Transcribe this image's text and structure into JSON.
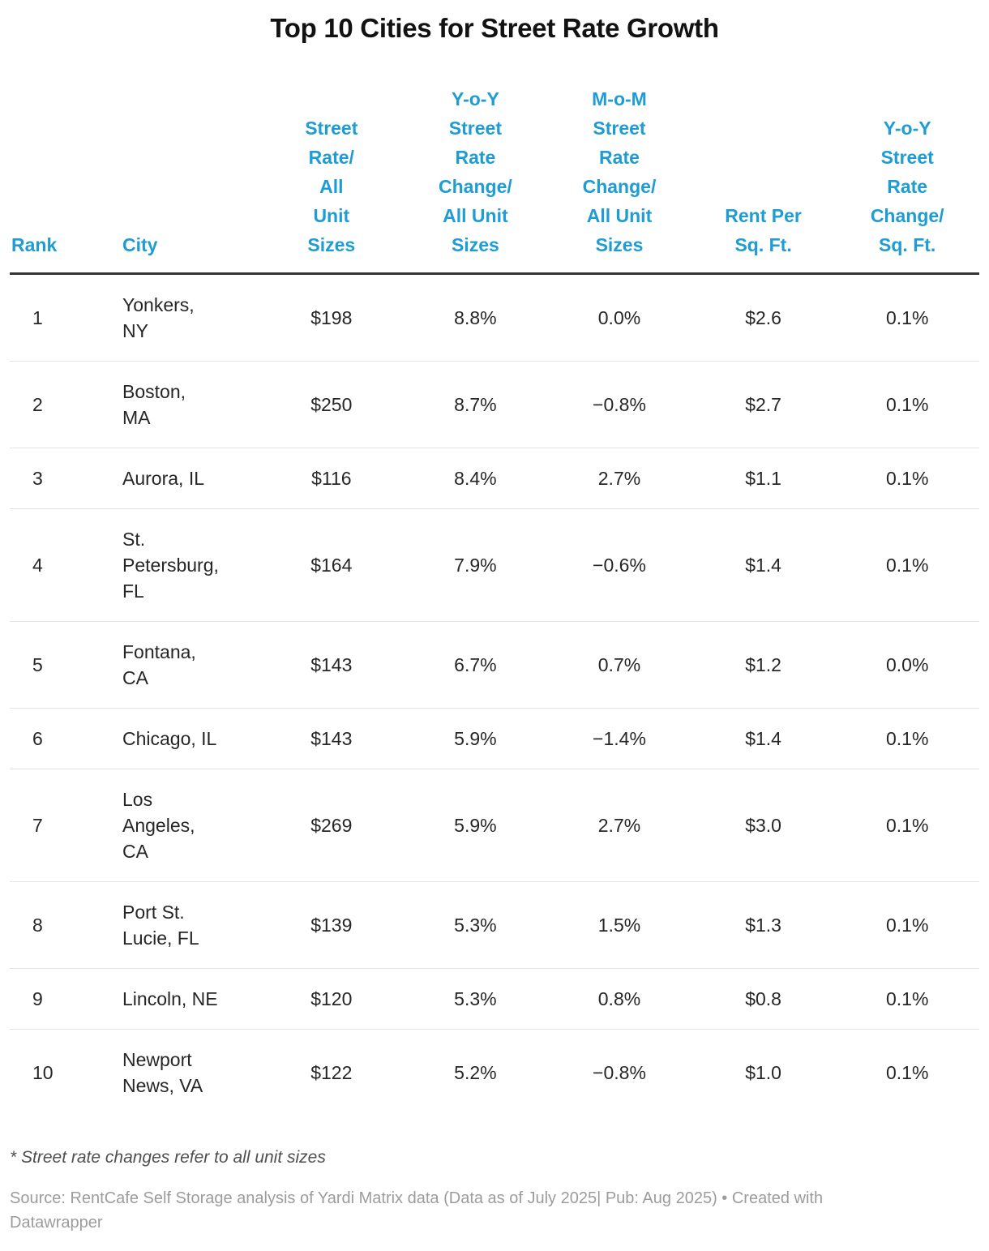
{
  "chart_data": {
    "type": "table",
    "title": "Top 10 Cities for Street Rate Growth",
    "columns": [
      {
        "id": "rank",
        "label": "Rank"
      },
      {
        "id": "city",
        "label": "City"
      },
      {
        "id": "street_rate",
        "label": "Street\nRate/\nAll\nUnit\nSizes"
      },
      {
        "id": "yoy_change",
        "label": "Y-o-Y\nStreet\nRate\nChange/\nAll Unit\nSizes"
      },
      {
        "id": "mom_change",
        "label": "M-o-M\nStreet\nRate\nChange/\nAll Unit\nSizes"
      },
      {
        "id": "rent_sqft",
        "label": "Rent Per\nSq. Ft."
      },
      {
        "id": "yoy_sqft",
        "label": "Y-o-Y\nStreet\nRate\nChange/\nSq. Ft."
      }
    ],
    "rows": [
      {
        "rank": "1",
        "city": "Yonkers,\nNY",
        "street_rate": "$198",
        "yoy_change": "8.8%",
        "mom_change": "0.0%",
        "rent_sqft": "$2.6",
        "yoy_sqft": "0.1%"
      },
      {
        "rank": "2",
        "city": "Boston,\nMA",
        "street_rate": "$250",
        "yoy_change": "8.7%",
        "mom_change": "−0.8%",
        "rent_sqft": "$2.7",
        "yoy_sqft": "0.1%"
      },
      {
        "rank": "3",
        "city": "Aurora, IL",
        "street_rate": "$116",
        "yoy_change": "8.4%",
        "mom_change": "2.7%",
        "rent_sqft": "$1.1",
        "yoy_sqft": "0.1%"
      },
      {
        "rank": "4",
        "city": "St.\nPetersburg,\nFL",
        "street_rate": "$164",
        "yoy_change": "7.9%",
        "mom_change": "−0.6%",
        "rent_sqft": "$1.4",
        "yoy_sqft": "0.1%"
      },
      {
        "rank": "5",
        "city": "Fontana,\nCA",
        "street_rate": "$143",
        "yoy_change": "6.7%",
        "mom_change": "0.7%",
        "rent_sqft": "$1.2",
        "yoy_sqft": "0.0%"
      },
      {
        "rank": "6",
        "city": "Chicago, IL",
        "street_rate": "$143",
        "yoy_change": "5.9%",
        "mom_change": "−1.4%",
        "rent_sqft": "$1.4",
        "yoy_sqft": "0.1%"
      },
      {
        "rank": "7",
        "city": "Los\nAngeles,\nCA",
        "street_rate": "$269",
        "yoy_change": "5.9%",
        "mom_change": "2.7%",
        "rent_sqft": "$3.0",
        "yoy_sqft": "0.1%"
      },
      {
        "rank": "8",
        "city": "Port St.\nLucie, FL",
        "street_rate": "$139",
        "yoy_change": "5.3%",
        "mom_change": "1.5%",
        "rent_sqft": "$1.3",
        "yoy_sqft": "0.1%"
      },
      {
        "rank": "9",
        "city": "Lincoln, NE",
        "street_rate": "$120",
        "yoy_change": "5.3%",
        "mom_change": "0.8%",
        "rent_sqft": "$0.8",
        "yoy_sqft": "0.1%"
      },
      {
        "rank": "10",
        "city": "Newport\nNews, VA",
        "street_rate": "$122",
        "yoy_change": "5.2%",
        "mom_change": "−0.8%",
        "rent_sqft": "$1.0",
        "yoy_sqft": "0.1%"
      }
    ]
  },
  "footnote": "* Street rate changes refer to all unit sizes",
  "source": "Source: RentCafe Self Storage analysis of Yardi Matrix data (Data as of July 2025| Pub: Aug 2025) • Created with Datawrapper",
  "colors": {
    "header_blue": "#1e9cd3",
    "title_text": "#121212",
    "body_text": "#262626",
    "rule_dark": "#343434",
    "rule_light": "#e3e3e3",
    "footnote_text": "#4f4f4f",
    "source_text": "#9c9c9c"
  }
}
